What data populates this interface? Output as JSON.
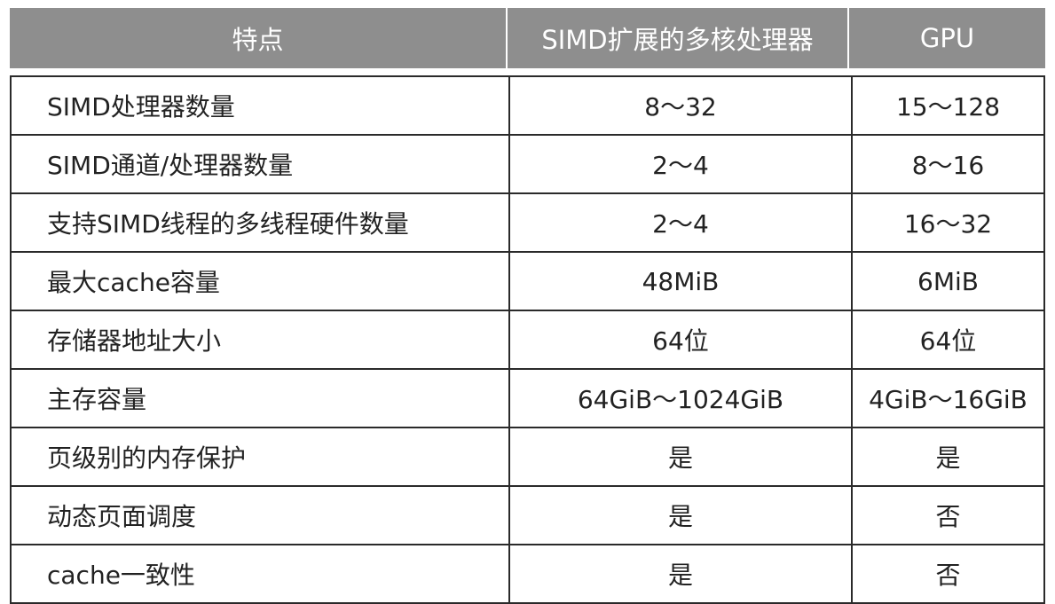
{
  "header": [
    "特点",
    "SIMD扩展的多核处理器",
    "GPU"
  ],
  "rows": [
    [
      "SIMD处理器数量",
      "8～32",
      "15～128"
    ],
    [
      "SIMD通道/处理器数量",
      "2～4",
      "8～16"
    ],
    [
      "支持SIMD线程的多线程硬件数量",
      "2～4",
      "16～32"
    ],
    [
      "最大cache容量",
      "48MiB",
      "6MiB"
    ],
    [
      "存储器地址大小",
      "64位",
      "64位"
    ],
    [
      "主存容量",
      "64GiB～1024GiB",
      "4GiB～16GiB"
    ],
    [
      "页级别的内存保护",
      "是",
      "是"
    ],
    [
      "动态页面调度",
      "是",
      "否"
    ],
    [
      "cache一致性",
      "是",
      "否"
    ]
  ]
}
